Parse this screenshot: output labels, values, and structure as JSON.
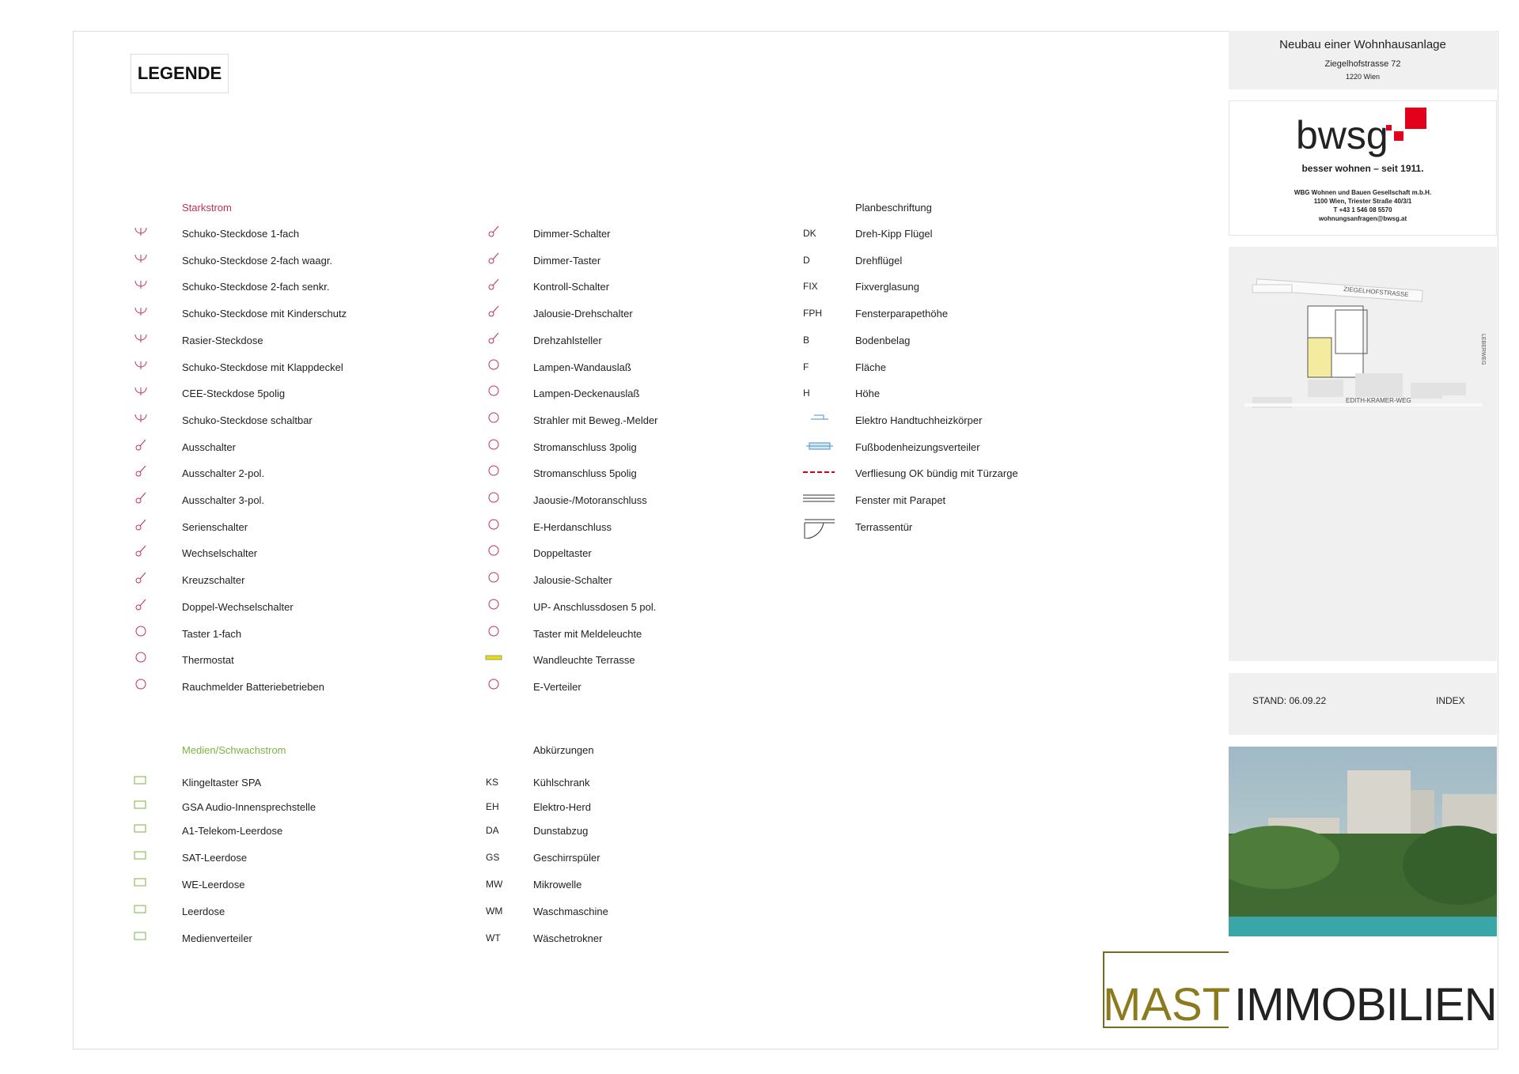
{
  "legend_title": "LEGENDE",
  "starkstrom": {
    "title": "Starkstrom",
    "column1": [
      "Schuko-Steckdose 1-fach",
      "Schuko-Steckdose 2-fach waagr.",
      "Schuko-Steckdose 2-fach senkr.",
      "Schuko-Steckdose mit Kinderschutz",
      "Rasier-Steckdose",
      "Schuko-Steckdose mit Klappdeckel",
      "CEE-Steckdose 5polig",
      "Schuko-Steckdose schaltbar",
      "Ausschalter",
      "Ausschalter 2-pol.",
      "Ausschalter 3-pol.",
      "Serienschalter",
      "Wechselschalter",
      "Kreuzschalter",
      "Doppel-Wechselschalter",
      "Taster 1-fach",
      "Thermostat",
      "Rauchmelder Batteriebetrieben"
    ],
    "column2": [
      "Dimmer-Schalter",
      "Dimmer-Taster",
      "Kontroll-Schalter",
      "Jalousie-Drehschalter",
      "Drehzahlsteller",
      "Lampen-Wandauslaß",
      "Lampen-Deckenauslaß",
      "Strahler mit Beweg.-Melder",
      "Stromanschluss 3polig",
      "Stromanschluss 5polig",
      "Jaousie-/Motoranschluss",
      "E-Herdanschluss",
      "Doppeltaster",
      "Jalousie-Schalter",
      "UP- Anschlussdosen 5 pol.",
      "Taster mit Meldeleuchte",
      "Wandleuchte Terrasse",
      "E-Verteiler"
    ]
  },
  "planbeschriftung": {
    "title": "Planbeschriftung",
    "items": [
      {
        "code": "DK",
        "label": "Dreh-Kipp Flügel"
      },
      {
        "code": "D",
        "label": "Drehflügel"
      },
      {
        "code": "FIX",
        "label": "Fixverglasung"
      },
      {
        "code": "FPH",
        "label": "Fensterparapethöhe"
      },
      {
        "code": "B",
        "label": "Bodenbelag"
      },
      {
        "code": "F",
        "label": "Fläche"
      },
      {
        "code": "H",
        "label": "Höhe"
      },
      {
        "label": "Elektro Handtuchheizkörper"
      },
      {
        "label": "Fußbodenheizungsverteiler"
      },
      {
        "label": "Verfliesung OK bündig mit Türzarge"
      },
      {
        "label": "Fenster mit Parapet"
      },
      {
        "label": "Terrassentür"
      }
    ]
  },
  "medien": {
    "title": "Medien/Schwachstrom",
    "items": [
      "Klingeltaster SPA",
      "GSA Audio-Innensprechstelle",
      "A1-Telekom-Leerdose",
      "SAT-Leerdose",
      "WE-Leerdose",
      "Leerdose",
      "Medienverteiler"
    ]
  },
  "abkuerzungen": {
    "title": "Abkürzungen",
    "items": [
      {
        "code": "KS",
        "label": "Kühlschrank"
      },
      {
        "code": "EH",
        "label": "Elektro-Herd"
      },
      {
        "code": "DA",
        "label": "Dunstabzug"
      },
      {
        "code": "GS",
        "label": "Geschirrspüler"
      },
      {
        "code": "MW",
        "label": "Mikrowelle"
      },
      {
        "code": "WM",
        "label": "Waschmaschine"
      },
      {
        "code": "WT",
        "label": "Wäschetrokner"
      }
    ]
  },
  "title_block": {
    "project": "Neubau einer Wohnhausanlage",
    "street": "Ziegelhofstrasse 72",
    "city": "1220 Wien",
    "logo": "bwsg",
    "slogan": "besser wohnen – seit 1911.",
    "company": [
      "WBG Wohnen und Bauen Gesellschaft m.b.H.",
      "1100 Wien, Triester Straße 40/3/1",
      "T +43 1 546 08 5570",
      "wohnungsanfragen@bwsg.at"
    ],
    "map_labels": [
      "ZIEGELHOFSTRASSE",
      "EDITH-KRAMER-WEG",
      "LEBERWEG"
    ],
    "stand": "STAND: 06.09.22",
    "index": "INDEX"
  },
  "brand": {
    "left": "MAST",
    "right": "IMMOBILIEN"
  }
}
